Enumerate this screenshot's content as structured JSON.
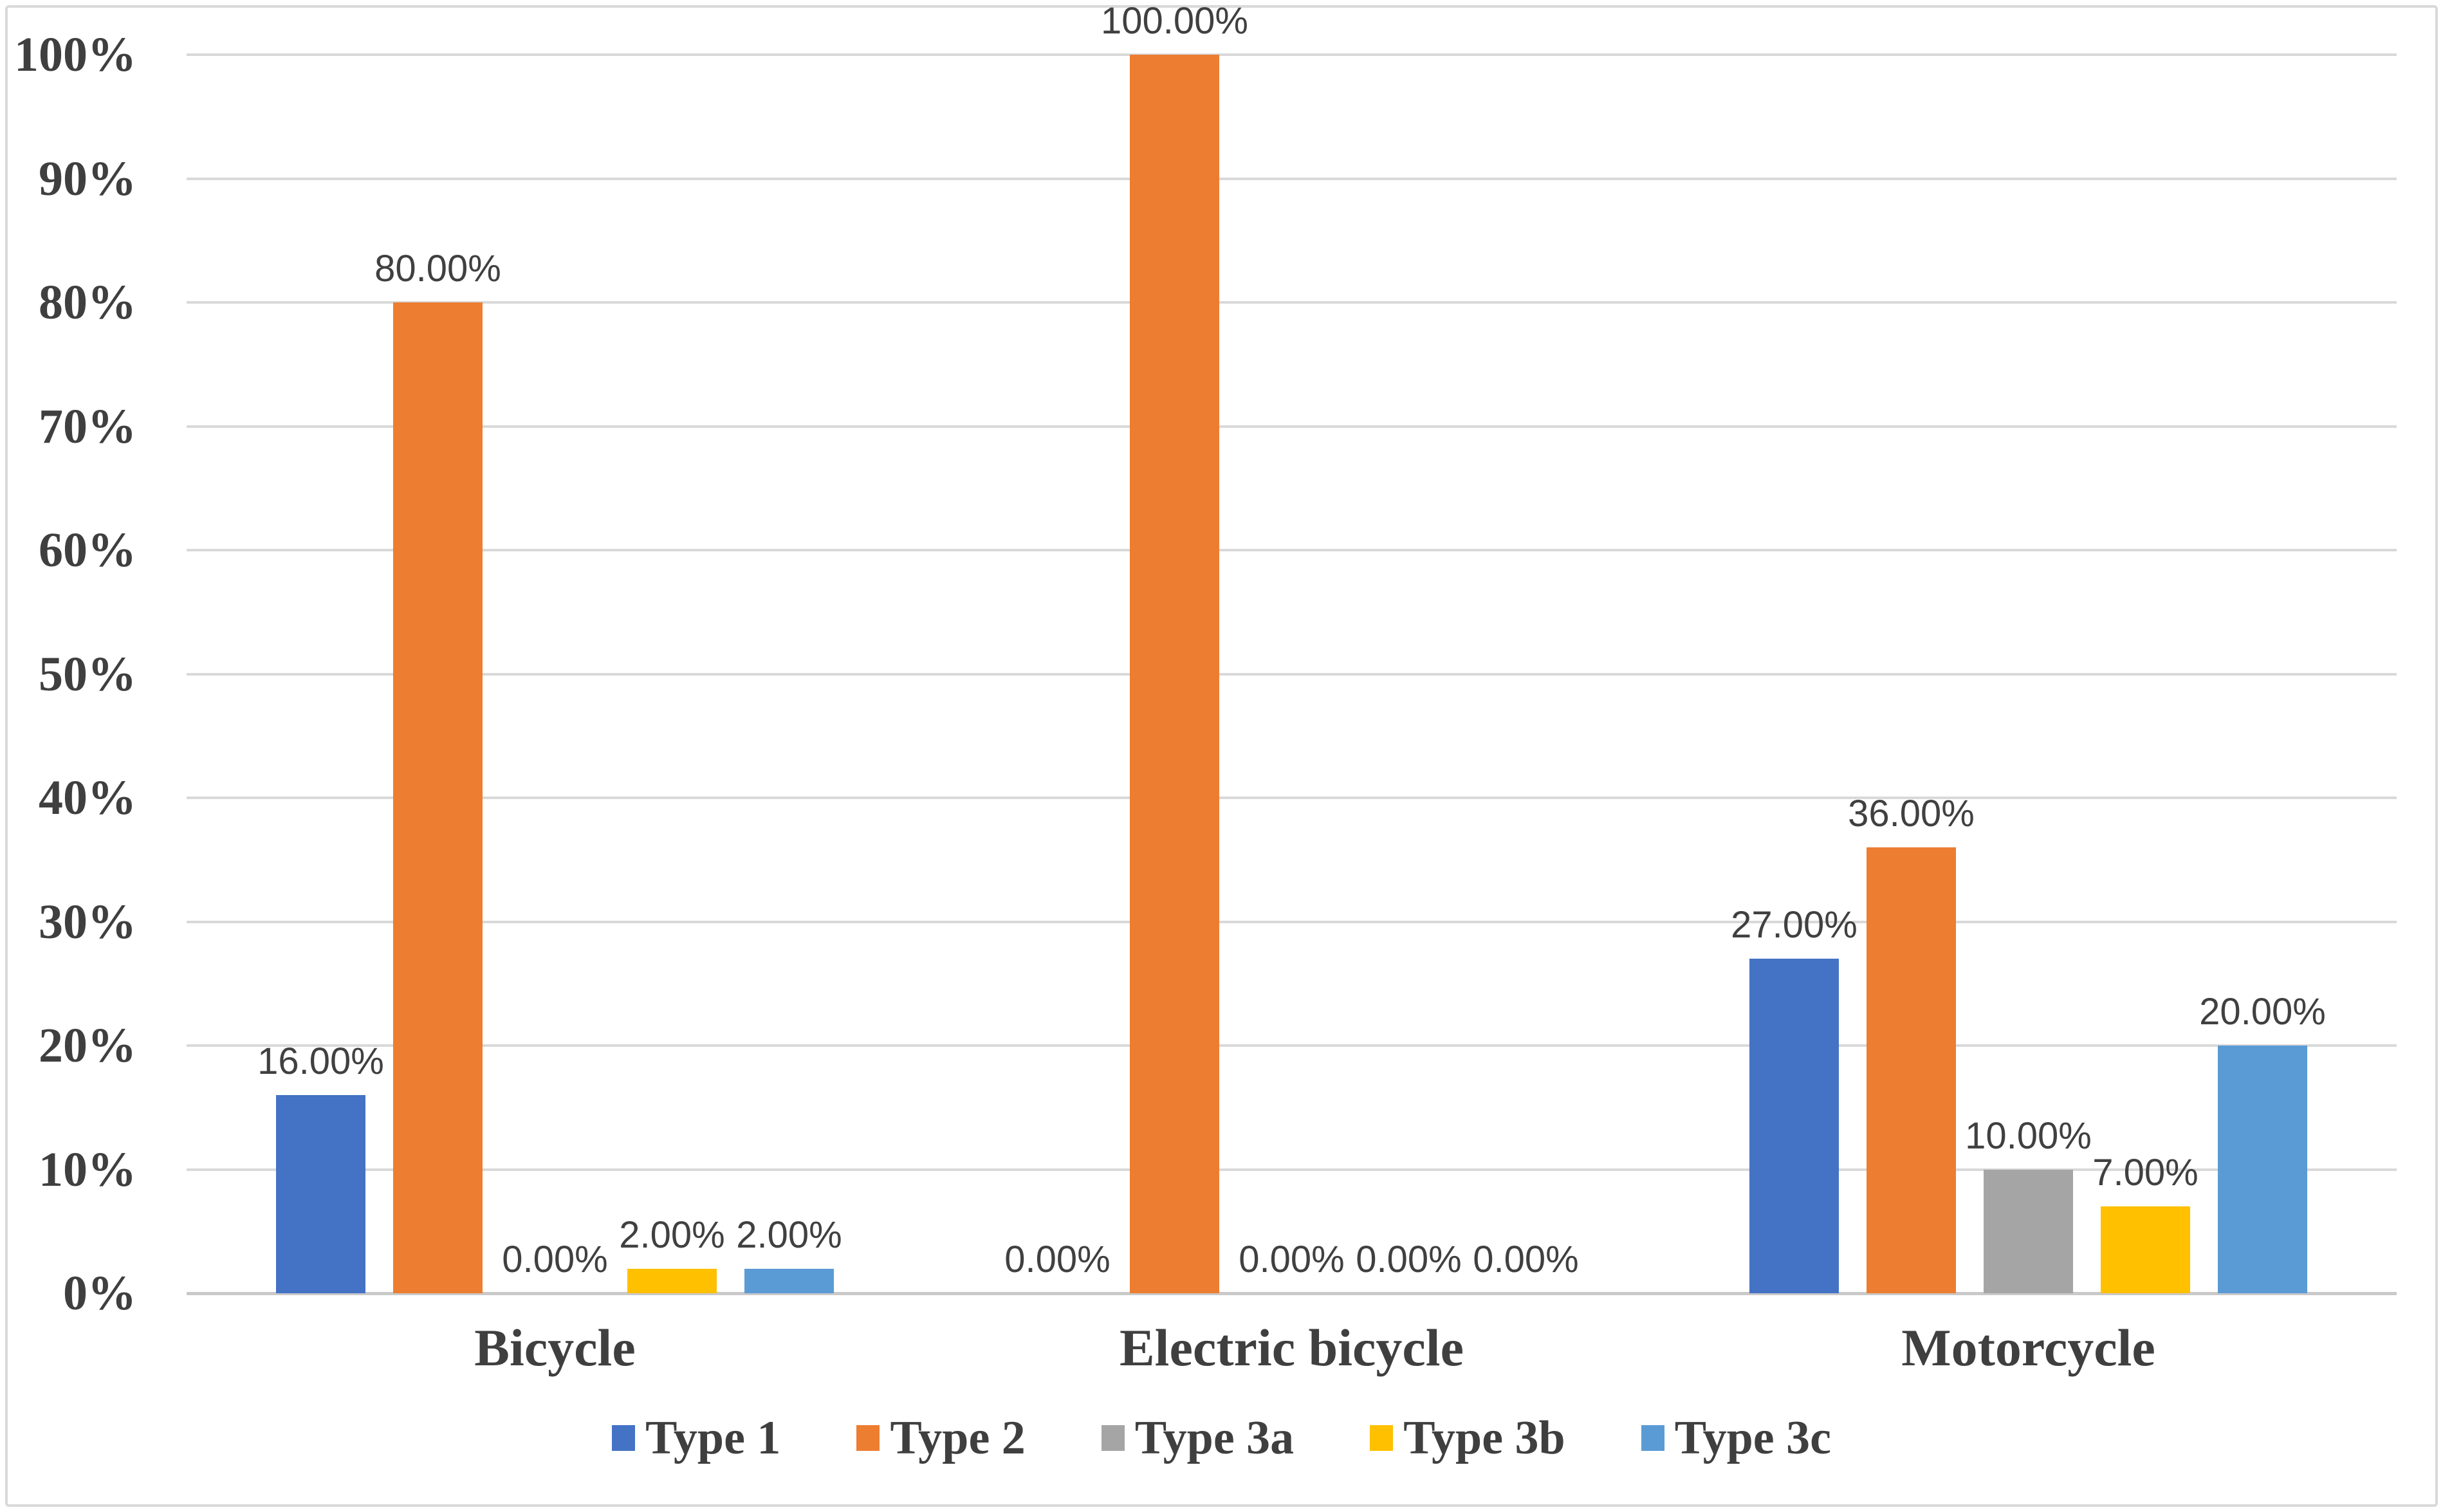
{
  "chart_data": {
    "type": "bar",
    "title": "",
    "xlabel": "",
    "ylabel": "",
    "ylim": [
      0,
      100
    ],
    "grid": true,
    "legend_position": "bottom",
    "y_ticks": [
      "0%",
      "10%",
      "20%",
      "30%",
      "40%",
      "50%",
      "60%",
      "70%",
      "80%",
      "90%",
      "100%"
    ],
    "categories": [
      "Bicycle",
      "Electric bicycle",
      "Motorcycle"
    ],
    "series": [
      {
        "name": "Type 1",
        "color": "#4472C4",
        "values": [
          16,
          0,
          27
        ],
        "labels": [
          "16.00%",
          "0.00%",
          "27.00%"
        ]
      },
      {
        "name": "Type 2",
        "color": "#ED7D31",
        "values": [
          80,
          100,
          36
        ],
        "labels": [
          "80.00%",
          "100.00%",
          "36.00%"
        ]
      },
      {
        "name": "Type 3a",
        "color": "#A5A5A5",
        "values": [
          0,
          0,
          10
        ],
        "labels": [
          "0.00%",
          "0.00%",
          "10.00%"
        ]
      },
      {
        "name": "Type 3b",
        "color": "#FFC000",
        "values": [
          2,
          0,
          7
        ],
        "labels": [
          "2.00%",
          "0.00%",
          "7.00%"
        ]
      },
      {
        "name": "Type 3c",
        "color": "#5B9BD5",
        "values": [
          2,
          0,
          20
        ],
        "labels": [
          "2.00%",
          "0.00%",
          "20.00%"
        ]
      }
    ]
  },
  "style_colors": {
    "gridline": "#d9d9d9",
    "axis_line": "#c9c9c9",
    "text": "#3f3f3f",
    "data_label_text": "#404040",
    "frame_border": "#d9d9d9",
    "background": "#ffffff"
  }
}
